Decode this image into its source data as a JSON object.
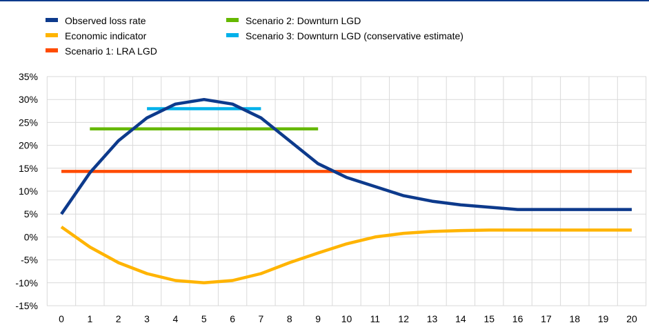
{
  "chart_data": {
    "type": "line",
    "x": [
      0,
      1,
      2,
      3,
      4,
      5,
      6,
      7,
      8,
      9,
      10,
      11,
      12,
      13,
      14,
      15,
      16,
      17,
      18,
      19,
      20
    ],
    "ylim": [
      -15,
      35
    ],
    "yticks": [
      -15,
      -10,
      -5,
      0,
      5,
      10,
      15,
      20,
      25,
      30,
      35
    ],
    "ytick_labels": [
      "-15%",
      "-10%",
      "-5%",
      "0%",
      "5%",
      "10%",
      "15%",
      "20%",
      "25%",
      "30%",
      "35%"
    ],
    "xtick_labels": [
      "0",
      "1",
      "2",
      "3",
      "4",
      "5",
      "6",
      "7",
      "8",
      "9",
      "10",
      "11",
      "12",
      "13",
      "14",
      "15",
      "16",
      "17",
      "18",
      "19",
      "20"
    ],
    "grid": true,
    "legend_position": "top-left",
    "series": [
      {
        "name": "Observed loss rate",
        "color": "#0d3a8c",
        "x": [
          0,
          1,
          2,
          3,
          4,
          5,
          6,
          7,
          8,
          9,
          10,
          11,
          12,
          13,
          14,
          15,
          16,
          17,
          18,
          19,
          20
        ],
        "values": [
          5,
          14,
          21,
          26,
          29,
          30,
          29,
          26,
          21,
          16,
          13,
          11,
          9,
          7.8,
          7,
          6.5,
          6,
          6,
          6,
          6,
          6
        ]
      },
      {
        "name": "Economic indicator",
        "color": "#ffb400",
        "x": [
          0,
          1,
          2,
          3,
          4,
          5,
          6,
          7,
          8,
          9,
          10,
          11,
          12,
          13,
          14,
          15,
          16,
          17,
          18,
          19,
          20
        ],
        "values": [
          2.2,
          -2.2,
          -5.6,
          -8,
          -9.5,
          -10,
          -9.5,
          -8,
          -5.6,
          -3.5,
          -1.5,
          0,
          0.8,
          1.2,
          1.4,
          1.5,
          1.5,
          1.5,
          1.5,
          1.5,
          1.5
        ]
      },
      {
        "name": "Scenario 1: LRA LGD",
        "color": "#ff4b00",
        "x": [
          0,
          20
        ],
        "values": [
          14.3,
          14.3
        ]
      },
      {
        "name": "Scenario 2: Downturn LGD",
        "color": "#65b800",
        "x": [
          1,
          9
        ],
        "values": [
          23.6,
          23.6
        ]
      },
      {
        "name": "Scenario 3: Downturn LGD (conservative estimate)",
        "color": "#00b1ea",
        "x": [
          3,
          7
        ],
        "values": [
          28,
          28
        ]
      }
    ]
  }
}
